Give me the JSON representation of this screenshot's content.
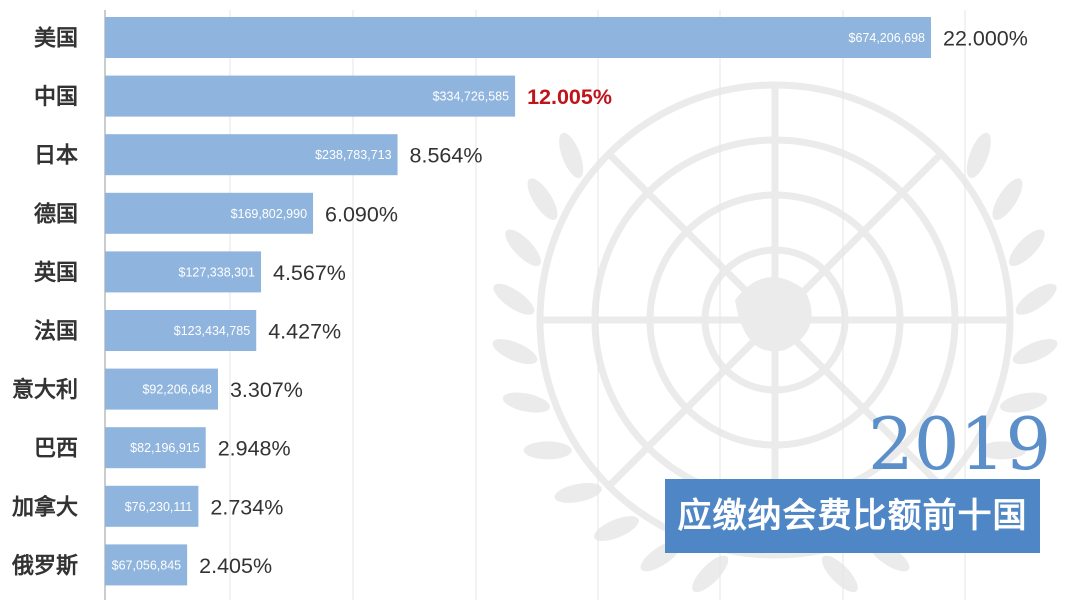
{
  "chart_data": {
    "type": "bar",
    "orientation": "horizontal",
    "categories": [
      "美国",
      "中国",
      "日本",
      "德国",
      "英国",
      "法国",
      "意大利",
      "巴西",
      "加拿大",
      "俄罗斯"
    ],
    "values": [
      674206698,
      334726585,
      238783713,
      169802990,
      127338301,
      123434785,
      92206648,
      82196915,
      76230111,
      67056845
    ],
    "value_labels": [
      "$674,206,698",
      "$334,726,585",
      "$238,783,713",
      "$169,802,990",
      "$127,338,301",
      "$123,434,785",
      "$92,206,648",
      "$82,196,915",
      "$76,230,111",
      "$67,056,845"
    ],
    "percent_labels": [
      "22.000%",
      "12.005%",
      "8.564%",
      "6.090%",
      "4.567%",
      "4.427%",
      "3.307%",
      "2.948%",
      "2.734%",
      "2.405%"
    ],
    "highlight_index": 1,
    "xlim": [
      0,
      700000000
    ],
    "grid": true,
    "title": "",
    "xlabel": "",
    "ylabel": ""
  },
  "year": "2019",
  "banner_text": "应缴纳会费比额前十国",
  "colors": {
    "bar": "#8fb4dd",
    "bar_label": "#ffffff",
    "percent": "#333333",
    "highlight_percent": "#c0141b",
    "category": "#333333",
    "grid": "#e4e4e4",
    "axis": "#9a9a9a",
    "emblem": "#ebebeb",
    "year": "#5b8fc9",
    "banner_bg": "#4f86c6",
    "banner_text": "#ffffff"
  }
}
